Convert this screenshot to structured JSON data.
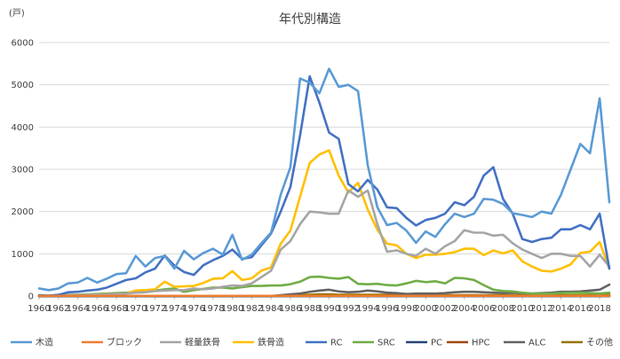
{
  "chart_data": {
    "type": "line",
    "title": "年代別構造",
    "unit_label": "(戸)",
    "xlabel": "",
    "ylabel": "",
    "ylim": [
      0,
      6000
    ],
    "y_ticks": [
      0,
      1000,
      2000,
      3000,
      4000,
      5000,
      6000
    ],
    "x_tick_labels": [
      "1960",
      "1962",
      "1964",
      "1966",
      "1968",
      "1970",
      "1972",
      "1974",
      "1976",
      "1978",
      "1980",
      "1982",
      "1984",
      "1986",
      "1988",
      "1990",
      "1992",
      "1994",
      "1996",
      "1998",
      "2000",
      "2002",
      "2004",
      "2006",
      "2008",
      "2010",
      "2012",
      "2014",
      "2016",
      "2018"
    ],
    "grid": "horizontal",
    "legend_position": "bottom",
    "x": [
      1960,
      1961,
      1962,
      1963,
      1964,
      1965,
      1966,
      1967,
      1968,
      1969,
      1970,
      1971,
      1972,
      1973,
      1974,
      1975,
      1976,
      1977,
      1978,
      1979,
      1980,
      1981,
      1982,
      1983,
      1984,
      1985,
      1986,
      1987,
      1988,
      1989,
      1990,
      1991,
      1992,
      1993,
      1994,
      1995,
      1996,
      1997,
      1998,
      1999,
      2000,
      2001,
      2002,
      2003,
      2004,
      2005,
      2006,
      2007,
      2008,
      2009,
      2010,
      2011,
      2012,
      2013,
      2014,
      2015,
      2016,
      2017,
      2018,
      2019
    ],
    "series": [
      {
        "name": "木造",
        "color": "#5B9BD5",
        "values": [
          180,
          140,
          180,
          300,
          320,
          430,
          320,
          410,
          520,
          540,
          950,
          700,
          900,
          950,
          650,
          1070,
          870,
          1020,
          1120,
          980,
          1450,
          860,
          980,
          1250,
          1500,
          2400,
          3050,
          5150,
          5050,
          4800,
          5380,
          4950,
          5000,
          4850,
          3100,
          2100,
          1680,
          1730,
          1550,
          1260,
          1530,
          1400,
          1700,
          1950,
          1870,
          1950,
          2300,
          2280,
          2180,
          1960,
          1920,
          1870,
          2000,
          1950,
          2400,
          3000,
          3600,
          3380,
          4680,
          2220
        ]
      },
      {
        "name": "ブロック",
        "color": "#ED7D31",
        "values": [
          5,
          5,
          5,
          5,
          5,
          5,
          5,
          5,
          5,
          5,
          5,
          5,
          5,
          5,
          5,
          5,
          5,
          5,
          5,
          5,
          5,
          5,
          5,
          5,
          5,
          5,
          5,
          5,
          5,
          5,
          5,
          5,
          5,
          5,
          5,
          5,
          5,
          5,
          5,
          5,
          5,
          5,
          5,
          5,
          5,
          5,
          5,
          5,
          5,
          5,
          5,
          5,
          5,
          5,
          5,
          5,
          5,
          5,
          5,
          5
        ]
      },
      {
        "name": "軽量鉄骨",
        "color": "#A5A5A5",
        "values": [
          10,
          10,
          10,
          20,
          20,
          30,
          30,
          40,
          50,
          60,
          80,
          90,
          120,
          130,
          140,
          140,
          180,
          160,
          180,
          220,
          250,
          240,
          300,
          450,
          600,
          1100,
          1300,
          1700,
          2000,
          1980,
          1950,
          1950,
          2500,
          2350,
          2500,
          1700,
          1050,
          1080,
          1000,
          950,
          1120,
          1000,
          1180,
          1300,
          1560,
          1500,
          1500,
          1430,
          1450,
          1250,
          1100,
          1000,
          900,
          1000,
          1000,
          950,
          950,
          700,
          980,
          700
        ]
      },
      {
        "name": "鉄骨造",
        "color": "#FFC000",
        "values": [
          10,
          10,
          10,
          20,
          20,
          30,
          30,
          40,
          50,
          60,
          130,
          140,
          160,
          340,
          220,
          230,
          240,
          310,
          410,
          420,
          590,
          380,
          420,
          600,
          680,
          1240,
          1550,
          2350,
          3150,
          3350,
          3450,
          2850,
          2450,
          2680,
          2050,
          1570,
          1240,
          1200,
          1000,
          900,
          980,
          980,
          1000,
          1040,
          1120,
          1120,
          970,
          1080,
          1010,
          1080,
          820,
          700,
          600,
          580,
          650,
          750,
          1020,
          1050,
          1280,
          650
        ]
      },
      {
        "name": "RC",
        "color": "#4472C4",
        "values": [
          20,
          10,
          30,
          90,
          100,
          130,
          150,
          200,
          290,
          380,
          420,
          560,
          650,
          960,
          720,
          570,
          500,
          730,
          850,
          950,
          1100,
          880,
          920,
          1200,
          1480,
          2000,
          2580,
          3800,
          5200,
          4580,
          3870,
          3720,
          2650,
          2480,
          2750,
          2520,
          2100,
          2080,
          1850,
          1670,
          1800,
          1850,
          1950,
          2220,
          2150,
          2350,
          2850,
          3050,
          2300,
          1950,
          1350,
          1280,
          1350,
          1380,
          1580,
          1580,
          1680,
          1580,
          1950,
          650
        ]
      },
      {
        "name": "SRC",
        "color": "#70AD47",
        "values": [
          10,
          10,
          20,
          30,
          30,
          40,
          50,
          60,
          70,
          80,
          100,
          110,
          130,
          160,
          180,
          100,
          140,
          170,
          200,
          200,
          180,
          210,
          240,
          240,
          250,
          250,
          280,
          340,
          450,
          460,
          430,
          410,
          450,
          290,
          280,
          290,
          260,
          250,
          300,
          360,
          330,
          350,
          300,
          430,
          420,
          380,
          260,
          150,
          120,
          110,
          80,
          60,
          60,
          60,
          70,
          80,
          80,
          70,
          60,
          80
        ]
      },
      {
        "name": "PC",
        "color": "#264478",
        "values": [
          0,
          0,
          0,
          0,
          0,
          0,
          0,
          0,
          0,
          0,
          0,
          0,
          0,
          0,
          0,
          0,
          0,
          0,
          0,
          0,
          0,
          0,
          0,
          0,
          0,
          0,
          0,
          0,
          0,
          0,
          0,
          0,
          0,
          0,
          0,
          0,
          0,
          0,
          0,
          0,
          0,
          0,
          0,
          0,
          0,
          0,
          0,
          0,
          0,
          0,
          0,
          0,
          0,
          0,
          0,
          0,
          0,
          0,
          0,
          0
        ]
      },
      {
        "name": "HPC",
        "color": "#9E480E",
        "values": [
          0,
          0,
          0,
          0,
          0,
          0,
          0,
          0,
          0,
          0,
          0,
          0,
          0,
          0,
          0,
          0,
          0,
          0,
          0,
          0,
          0,
          0,
          0,
          0,
          0,
          0,
          0,
          0,
          0,
          0,
          0,
          0,
          0,
          0,
          0,
          0,
          0,
          0,
          0,
          0,
          0,
          0,
          0,
          0,
          0,
          0,
          0,
          0,
          0,
          0,
          0,
          0,
          0,
          0,
          0,
          0,
          0,
          0,
          0,
          0
        ]
      },
      {
        "name": "ALC",
        "color": "#636363",
        "values": [
          0,
          0,
          0,
          0,
          0,
          0,
          0,
          0,
          0,
          0,
          0,
          0,
          0,
          0,
          0,
          0,
          0,
          0,
          0,
          0,
          0,
          0,
          0,
          0,
          0,
          20,
          40,
          60,
          100,
          130,
          150,
          110,
          90,
          100,
          130,
          110,
          80,
          70,
          50,
          60,
          60,
          60,
          70,
          90,
          100,
          100,
          90,
          80,
          70,
          80,
          70,
          60,
          70,
          80,
          100,
          100,
          110,
          130,
          150,
          270
        ]
      },
      {
        "name": "その他",
        "color": "#997300",
        "values": [
          5,
          5,
          5,
          5,
          5,
          5,
          5,
          5,
          5,
          5,
          5,
          5,
          5,
          5,
          5,
          5,
          5,
          5,
          5,
          5,
          5,
          5,
          5,
          5,
          5,
          10,
          20,
          20,
          30,
          40,
          40,
          30,
          30,
          30,
          30,
          30,
          30,
          20,
          20,
          20,
          20,
          20,
          20,
          20,
          20,
          20,
          20,
          20,
          20,
          20,
          20,
          20,
          20,
          20,
          20,
          20,
          20,
          20,
          20,
          30
        ]
      }
    ]
  }
}
